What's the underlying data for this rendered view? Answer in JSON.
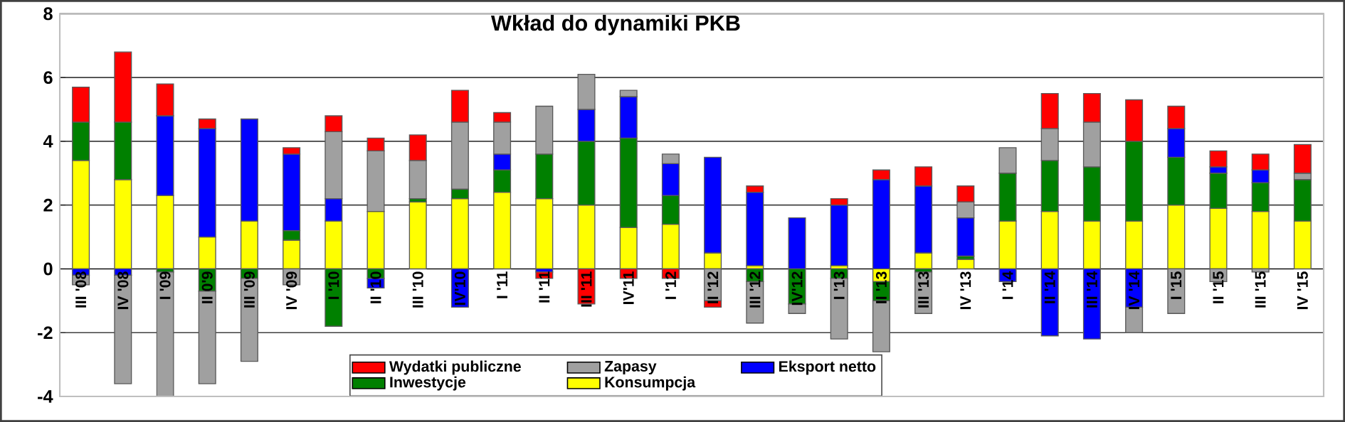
{
  "chart_data": {
    "type": "bar",
    "title": "Wkład do dynamiki PKB",
    "stacked": true,
    "categories": [
      "III '08",
      "IV '08",
      "I '09",
      "II 0'9",
      "III '09",
      "IV '09",
      "I '10",
      "II '10",
      "III '10",
      "IV'10",
      "I '11",
      "II '11",
      "III '11",
      "IV'11",
      "I '12",
      "II '12",
      "III '12",
      "IV'12",
      "I '13",
      "II '13",
      "III '13",
      "IV '13",
      "I '14",
      "II '14",
      "III '14",
      "IV '14",
      "I '15",
      "II '15",
      "III '15",
      "IV '15"
    ],
    "series": [
      {
        "name": "Konsumpcja",
        "color": "#ffff00",
        "values": [
          3.4,
          2.8,
          2.3,
          1.0,
          1.5,
          0.9,
          1.5,
          1.8,
          2.1,
          2.2,
          2.4,
          2.2,
          2.0,
          1.3,
          1.4,
          0.5,
          0.1,
          0,
          0.1,
          -0.4,
          0.5,
          0.3,
          1.5,
          1.8,
          1.5,
          1.5,
          2.0,
          1.9,
          1.8,
          1.5
        ]
      },
      {
        "name": "Inwestycje",
        "color": "#008000",
        "values": [
          1.2,
          1.8,
          -0.1,
          -0.7,
          -0.3,
          0.3,
          -1.8,
          -0.3,
          0.1,
          0.3,
          0.7,
          1.4,
          2.0,
          2.8,
          0.9,
          0,
          -0.4,
          -1.1,
          -0.3,
          -0.6,
          -0.1,
          0.1,
          1.5,
          1.6,
          1.7,
          2.5,
          1.5,
          1.1,
          0.9,
          1.3
        ]
      },
      {
        "name": "Eksport netto",
        "color": "#0000ff",
        "values": [
          -0.2,
          -0.2,
          2.5,
          3.4,
          3.2,
          2.4,
          0.7,
          -0.3,
          0,
          -1.2,
          0.5,
          -0.1,
          1.0,
          1.3,
          1.0,
          3.0,
          2.3,
          1.6,
          1.9,
          2.8,
          2.1,
          1.2,
          -0.4,
          -2.1,
          -2.2,
          -1.2,
          0.9,
          0.2,
          0.4,
          0
        ]
      },
      {
        "name": "Zapasy",
        "color": "#a0a0a0",
        "values": [
          -0.3,
          -3.4,
          -3.9,
          -2.9,
          -2.6,
          -0.5,
          2.1,
          1.9,
          1.2,
          2.1,
          1.0,
          1.5,
          1.1,
          0.2,
          0.3,
          -1.0,
          -1.3,
          -0.3,
          -1.9,
          -1.6,
          -1.3,
          0.5,
          0.8,
          1.0,
          1.4,
          -0.8,
          -1.4,
          -0.4,
          -0.1,
          0.2
        ]
      },
      {
        "name": "Wydatki publiczne",
        "color": "#ff0000",
        "values": [
          1.1,
          2.2,
          1.0,
          0.3,
          0,
          0.2,
          0.5,
          0.4,
          0.8,
          1.0,
          0.3,
          -0.2,
          -1.1,
          -0.3,
          -0.3,
          -0.2,
          0.2,
          0,
          0.2,
          0.3,
          0.6,
          0.5,
          0,
          1.1,
          0.9,
          1.3,
          0.7,
          0.5,
          0.5,
          0.9
        ]
      }
    ],
    "ylim": [
      -4,
      8
    ],
    "yticks": [
      -4,
      -2,
      0,
      2,
      4,
      6,
      8
    ],
    "grid": "y",
    "legend": "bottom"
  }
}
